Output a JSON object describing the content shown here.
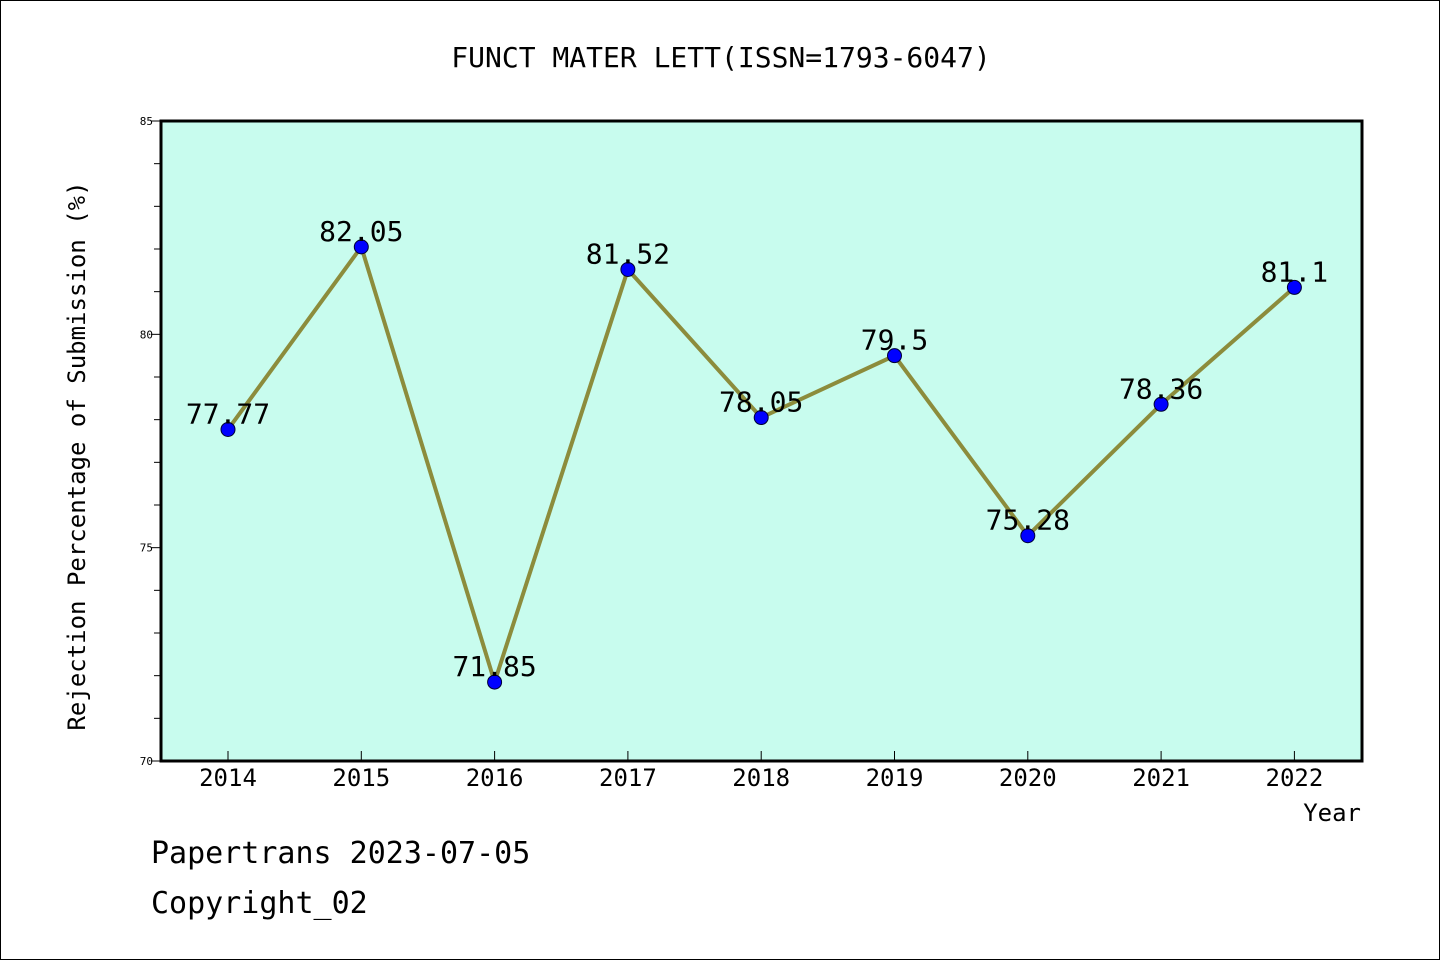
{
  "chart_data": {
    "type": "line",
    "title": "FUNCT MATER LETT(ISSN=1793-6047)",
    "xlabel": "Year",
    "ylabel": "Rejection Percentage of Submission (%)",
    "categories": [
      "2014",
      "2015",
      "2016",
      "2017",
      "2018",
      "2019",
      "2020",
      "2021",
      "2022"
    ],
    "series": [
      {
        "values": [
          77.77,
          82.05,
          71.85,
          81.52,
          78.05,
          79.5,
          75.28,
          78.36,
          81.1
        ]
      }
    ],
    "data_labels": [
      "77.77",
      "82.05",
      "71.85",
      "81.52",
      "78.05",
      "79.5",
      "75.28",
      "78.36",
      "81.1"
    ],
    "ylim": [
      70,
      85
    ],
    "yticks": [
      "70",
      "75",
      "80",
      "85"
    ],
    "grid": false,
    "colors": {
      "plot_background": "#c8fcee",
      "line": "#8c8c3c",
      "marker": "#0000ff"
    }
  },
  "footer": {
    "line1": "Papertrans 2023-07-05",
    "line2": "Copyright_02"
  }
}
